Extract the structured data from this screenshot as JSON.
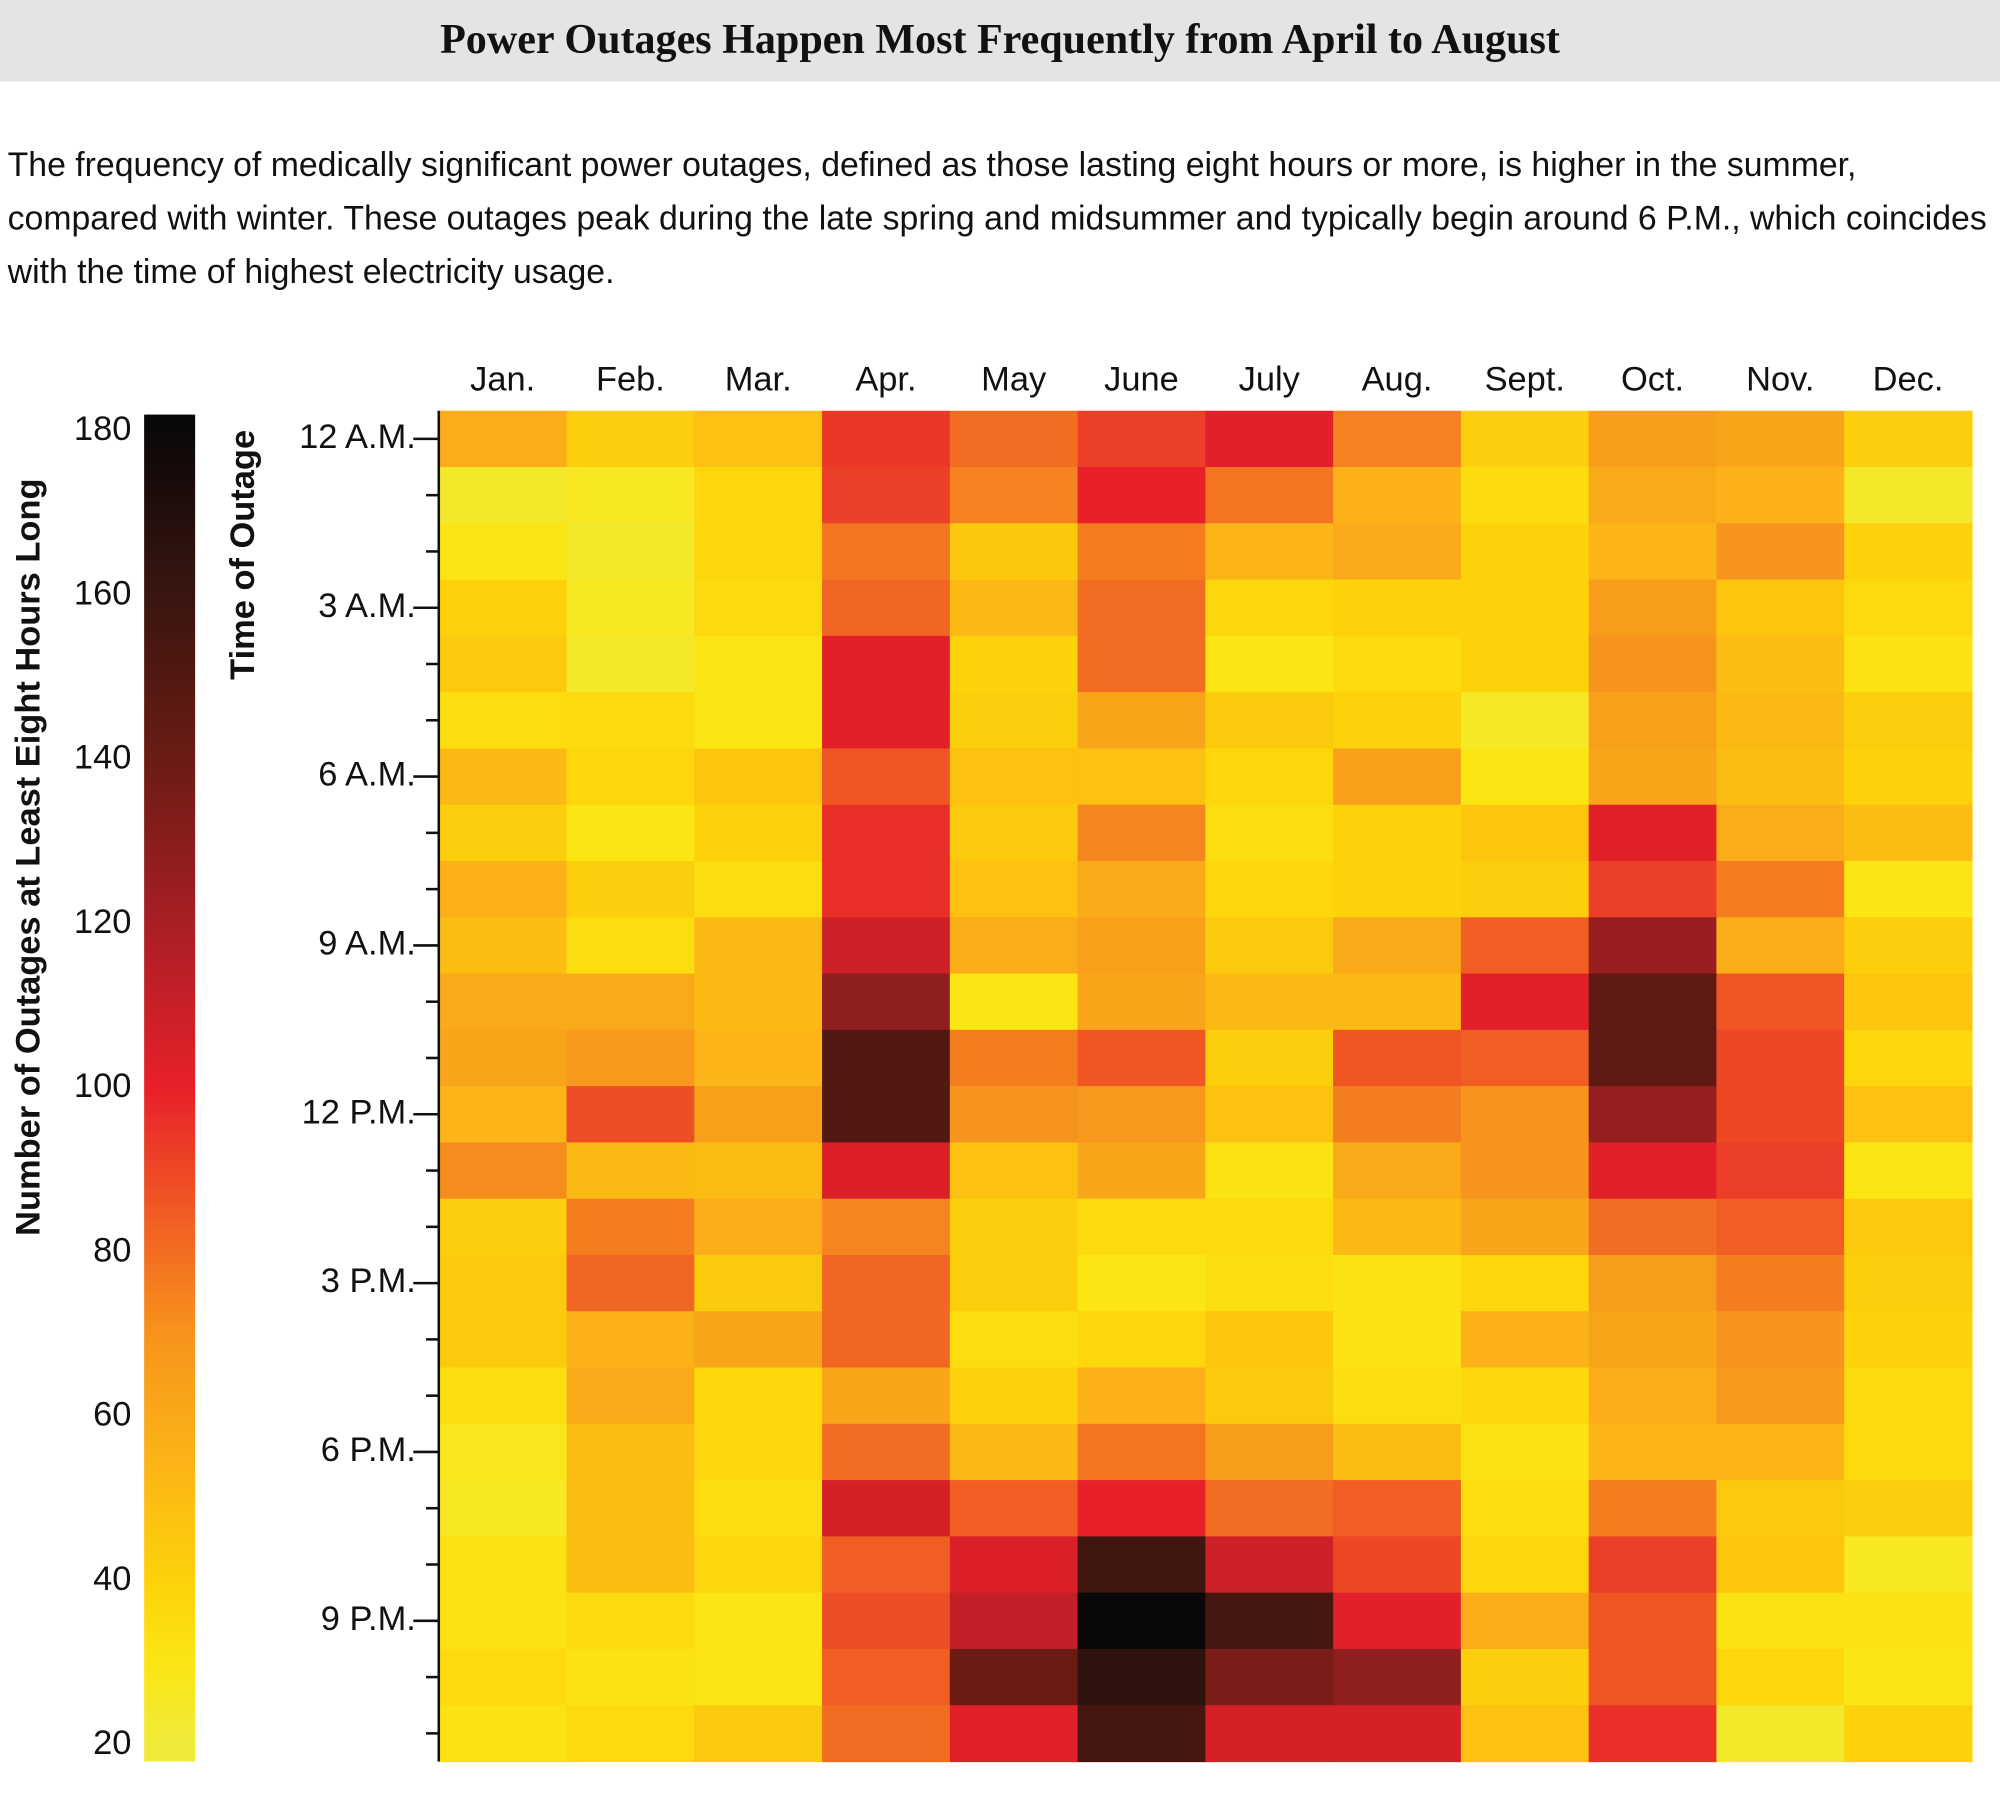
{
  "chart_data": {
    "type": "heatmap",
    "title": "Power Outages Happen Most Frequently from April to August",
    "subtitle": "The frequency of medically significant power outages, defined as those lasting eight hours or more, is higher in the summer, compared with winter. These outages peak during the late spring and midsummer and typically begin around 6 P.M., which coincides with the time of highest electricity usage.",
    "x_categories": [
      "Jan.",
      "Feb.",
      "Mar.",
      "Apr.",
      "May",
      "June",
      "July",
      "Aug.",
      "Sept.",
      "Oct.",
      "Nov.",
      "Dec."
    ],
    "y_label": "Time of Outage",
    "y_categories": [
      "12 A.M.",
      null,
      null,
      "3 A.M.",
      null,
      null,
      "6 A.M.",
      null,
      null,
      "9 A.M.",
      null,
      null,
      "12 P.M.",
      null,
      null,
      "3 P.M.",
      null,
      null,
      "6 P.M.",
      null,
      null,
      "9 P.M.",
      null,
      null
    ],
    "z": [
      [
        58,
        42,
        48,
        94,
        80,
        92,
        102,
        75,
        42,
        65,
        62,
        42
      ],
      [
        24,
        26,
        38,
        92,
        75,
        100,
        78,
        56,
        35,
        60,
        56,
        24
      ],
      [
        30,
        24,
        38,
        78,
        45,
        76,
        54,
        60,
        40,
        54,
        70,
        40
      ],
      [
        40,
        26,
        36,
        82,
        52,
        80,
        38,
        40,
        40,
        66,
        46,
        36
      ],
      [
        44,
        24,
        30,
        102,
        40,
        80,
        30,
        36,
        40,
        70,
        50,
        32
      ],
      [
        34,
        36,
        30,
        102,
        42,
        62,
        44,
        40,
        25,
        64,
        52,
        42
      ],
      [
        52,
        38,
        46,
        86,
        48,
        48,
        38,
        64,
        30,
        62,
        50,
        40
      ],
      [
        42,
        30,
        40,
        96,
        44,
        74,
        34,
        40,
        46,
        102,
        58,
        50
      ],
      [
        56,
        42,
        34,
        96,
        48,
        60,
        38,
        40,
        42,
        92,
        76,
        30
      ],
      [
        50,
        34,
        52,
        108,
        58,
        64,
        44,
        60,
        84,
        125,
        58,
        42
      ],
      [
        60,
        60,
        52,
        128,
        30,
        62,
        52,
        52,
        102,
        145,
        86,
        46
      ],
      [
        62,
        68,
        54,
        150,
        76,
        86,
        42,
        86,
        84,
        145,
        90,
        38
      ],
      [
        54,
        88,
        64,
        150,
        70,
        68,
        48,
        76,
        70,
        126,
        90,
        48
      ],
      [
        72,
        52,
        50,
        104,
        48,
        62,
        32,
        60,
        70,
        102,
        92,
        30
      ],
      [
        42,
        76,
        58,
        74,
        42,
        36,
        36,
        52,
        62,
        80,
        84,
        44
      ],
      [
        44,
        82,
        44,
        82,
        42,
        30,
        34,
        32,
        38,
        66,
        76,
        42
      ],
      [
        44,
        56,
        62,
        82,
        34,
        38,
        46,
        32,
        56,
        62,
        70,
        40
      ],
      [
        34,
        60,
        38,
        62,
        40,
        56,
        44,
        34,
        38,
        58,
        68,
        36
      ],
      [
        28,
        50,
        38,
        80,
        52,
        78,
        66,
        50,
        32,
        54,
        54,
        36
      ],
      [
        26,
        50,
        34,
        106,
        84,
        100,
        80,
        84,
        34,
        76,
        44,
        42
      ],
      [
        32,
        50,
        38,
        84,
        104,
        158,
        108,
        90,
        38,
        92,
        46,
        26
      ],
      [
        32,
        36,
        30,
        88,
        112,
        180,
        155,
        102,
        58,
        86,
        32,
        32
      ],
      [
        36,
        32,
        30,
        84,
        140,
        165,
        135,
        128,
        42,
        86,
        38,
        30
      ],
      [
        32,
        36,
        44,
        80,
        102,
        155,
        106,
        106,
        48,
        96,
        24,
        40
      ]
    ],
    "colorbar_label": "Number of Outages at Least Eight Hours Long",
    "clim": [
      18,
      182
    ],
    "colorbar_ticks": [
      20,
      40,
      60,
      80,
      100,
      120,
      140,
      160,
      180
    ],
    "colorscale": [
      [
        20,
        "#f0ea3a"
      ],
      [
        30,
        "#fbe614"
      ],
      [
        40,
        "#fdd20a"
      ],
      [
        55,
        "#fbb317"
      ],
      [
        70,
        "#f7941d"
      ],
      [
        85,
        "#f05a24"
      ],
      [
        100,
        "#e8202a"
      ],
      [
        120,
        "#a81f24"
      ],
      [
        140,
        "#6a1c14"
      ],
      [
        160,
        "#3a1510"
      ],
      [
        180,
        "#0a0808"
      ]
    ]
  }
}
